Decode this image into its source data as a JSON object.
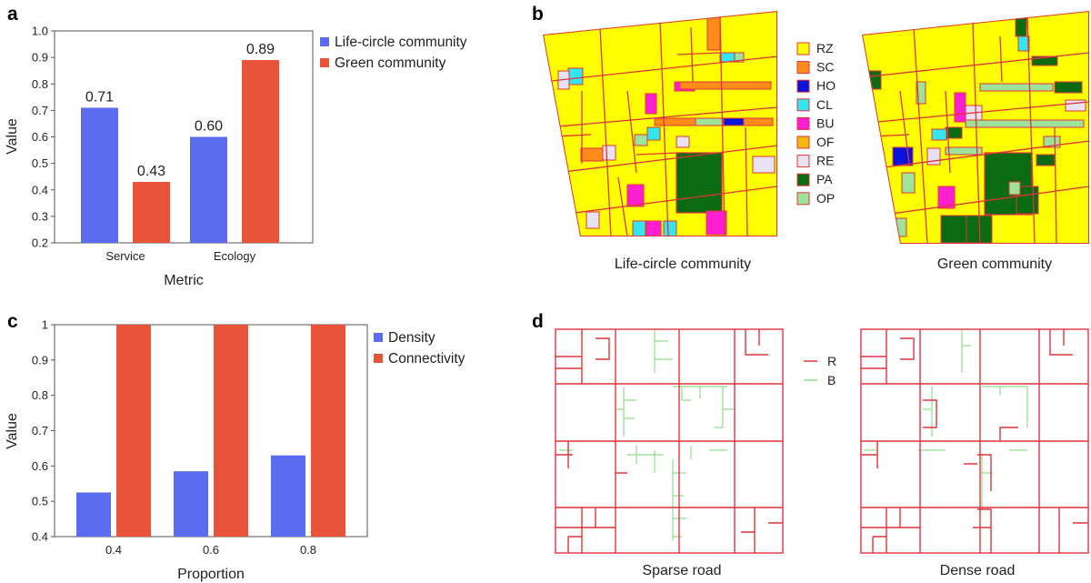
{
  "panels": {
    "a": "a",
    "b": "b",
    "c": "c",
    "d": "d"
  },
  "colors": {
    "blue": "#5b6cf0",
    "red": "#e8533a",
    "road_r": "#e0343a",
    "road_b": "#8ee08a"
  },
  "chart_data": [
    {
      "id": "a",
      "type": "bar",
      "categories": [
        "Service",
        "Ecology"
      ],
      "series": [
        {
          "name": "Life-circle community",
          "values": [
            0.71,
            0.6
          ],
          "labels": [
            "0.71",
            "0.60"
          ],
          "color": "#5b6cf0"
        },
        {
          "name": "Green community",
          "values": [
            0.43,
            0.89
          ],
          "labels": [
            "0.43",
            "0.89"
          ],
          "color": "#e8533a"
        }
      ],
      "xlabel": "Metric",
      "ylabel": "Value",
      "ylim": [
        0.2,
        1.0
      ],
      "yticks": [
        "0.2",
        "0.3",
        "0.4",
        "0.5",
        "0.6",
        "0.7",
        "0.8",
        "0.9",
        "1.0"
      ],
      "legend": "top-right outside",
      "grid": false
    },
    {
      "id": "c",
      "type": "bar",
      "categories": [
        "0.4",
        "0.6",
        "0.8"
      ],
      "series": [
        {
          "name": "Density",
          "values": [
            0.525,
            0.585,
            0.63
          ],
          "color": "#5b6cf0"
        },
        {
          "name": "Connectivity",
          "values": [
            1.0,
            1.0,
            1.0
          ],
          "color": "#e8533a"
        }
      ],
      "xlabel": "Proportion",
      "ylabel": "Value",
      "ylim": [
        0.4,
        1.0
      ],
      "yticks": [
        "0.4",
        "0.5",
        "0.6",
        "0.7",
        "0.8",
        "0.9",
        "1"
      ],
      "legend": "top-right outside",
      "grid": false
    }
  ],
  "panel_b": {
    "captions": [
      "Life-circle community",
      "Green community"
    ],
    "legend": [
      {
        "code": "RZ",
        "color": "#ffff00"
      },
      {
        "code": "SC",
        "color": "#ff8c1a"
      },
      {
        "code": "HO",
        "color": "#0a14d8"
      },
      {
        "code": "CL",
        "color": "#33e5ee"
      },
      {
        "code": "BU",
        "color": "#ff1fd2"
      },
      {
        "code": "OF",
        "color": "#f2b80e"
      },
      {
        "code": "RE",
        "color": "#e6e2f3"
      },
      {
        "code": "PA",
        "color": "#0a6b12"
      },
      {
        "code": "OP",
        "color": "#9de39a"
      }
    ]
  },
  "panel_d": {
    "captions": [
      "Sparse road",
      "Dense road"
    ],
    "legend": [
      {
        "code": "R",
        "color": "#e0343a"
      },
      {
        "code": "B",
        "color": "#8ee08a"
      }
    ]
  }
}
